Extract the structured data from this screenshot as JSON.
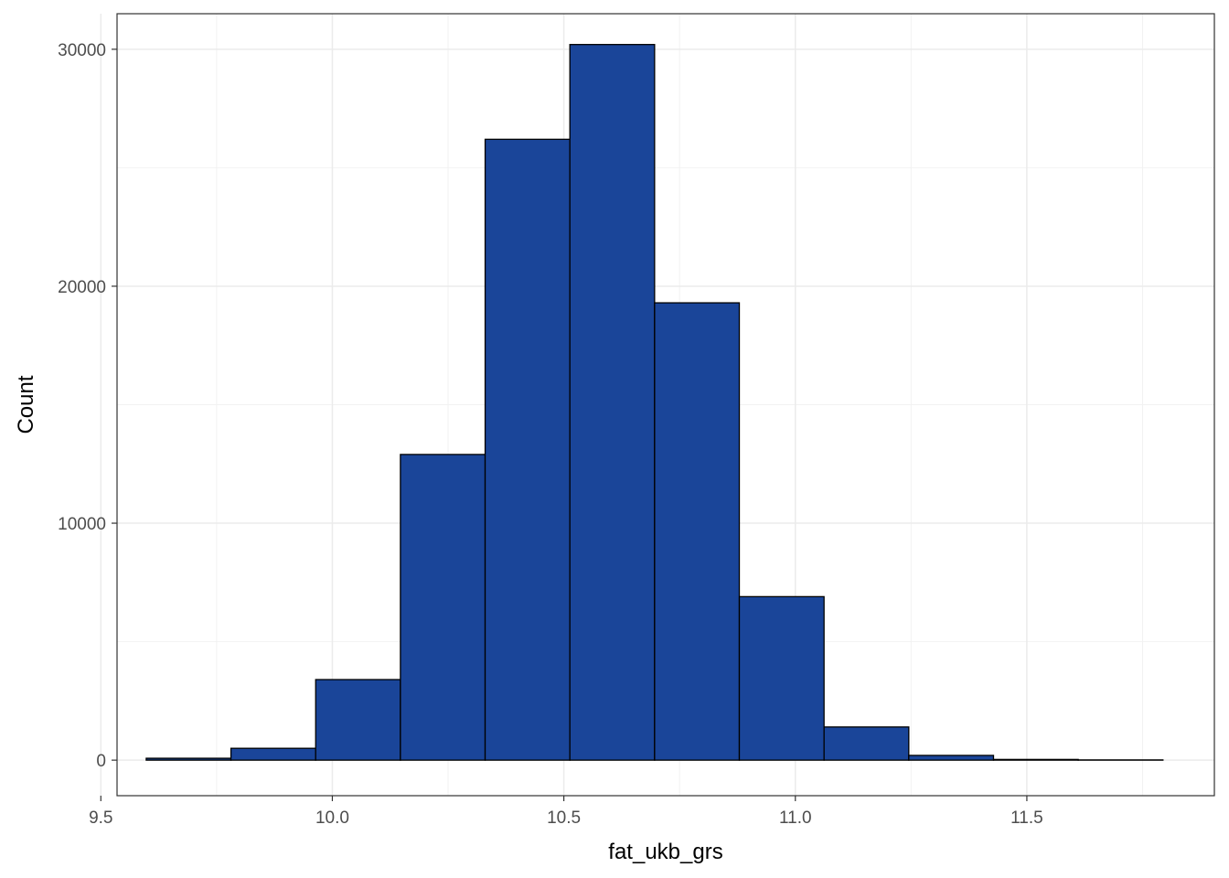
{
  "chart_data": {
    "type": "bar",
    "title": "",
    "xlabel": "fat_ukb_grs",
    "ylabel": "Count",
    "xlim": [
      9.535,
      11.905
    ],
    "ylim": [
      -1500,
      31500
    ],
    "bin_edges": [
      9.598,
      9.781,
      9.964,
      10.147,
      10.33,
      10.513,
      10.696,
      10.879,
      11.062,
      11.245,
      11.428,
      11.611,
      11.794
    ],
    "values": [
      80,
      500,
      3400,
      12900,
      26200,
      30200,
      19300,
      6900,
      1400,
      200,
      30,
      10
    ],
    "x_ticks": [
      9.5,
      10.0,
      10.5,
      11.0,
      11.5
    ],
    "x_tick_labels": [
      "9.5",
      "10.0",
      "10.5",
      "11.0",
      "11.5"
    ],
    "y_ticks": [
      0,
      10000,
      20000,
      30000
    ],
    "y_tick_labels": [
      "0",
      "10000",
      "20000",
      "30000"
    ],
    "grid": true,
    "fill_color": "#1a4599",
    "outline_color": "#000000",
    "theme": "bw"
  }
}
